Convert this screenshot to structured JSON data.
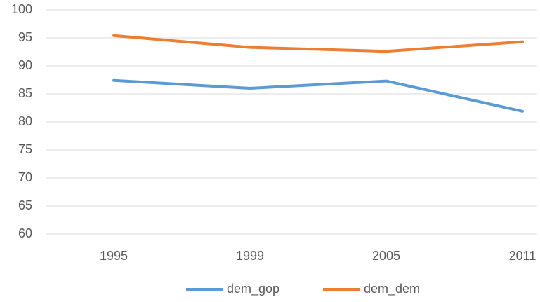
{
  "chart_data": {
    "type": "line",
    "categories": [
      "1995",
      "1999",
      "2005",
      "2011"
    ],
    "series": [
      {
        "name": "dem_gop",
        "color": "#5b9bd5",
        "values": [
          87.4,
          86.0,
          87.3,
          81.9
        ]
      },
      {
        "name": "dem_dem",
        "color": "#ed7d31",
        "values": [
          95.4,
          93.3,
          92.6,
          94.3
        ]
      }
    ],
    "ylim": [
      60,
      100
    ],
    "yticks": [
      60,
      65,
      70,
      75,
      80,
      85,
      90,
      95,
      100
    ],
    "grid": true,
    "legend": "bottom"
  }
}
